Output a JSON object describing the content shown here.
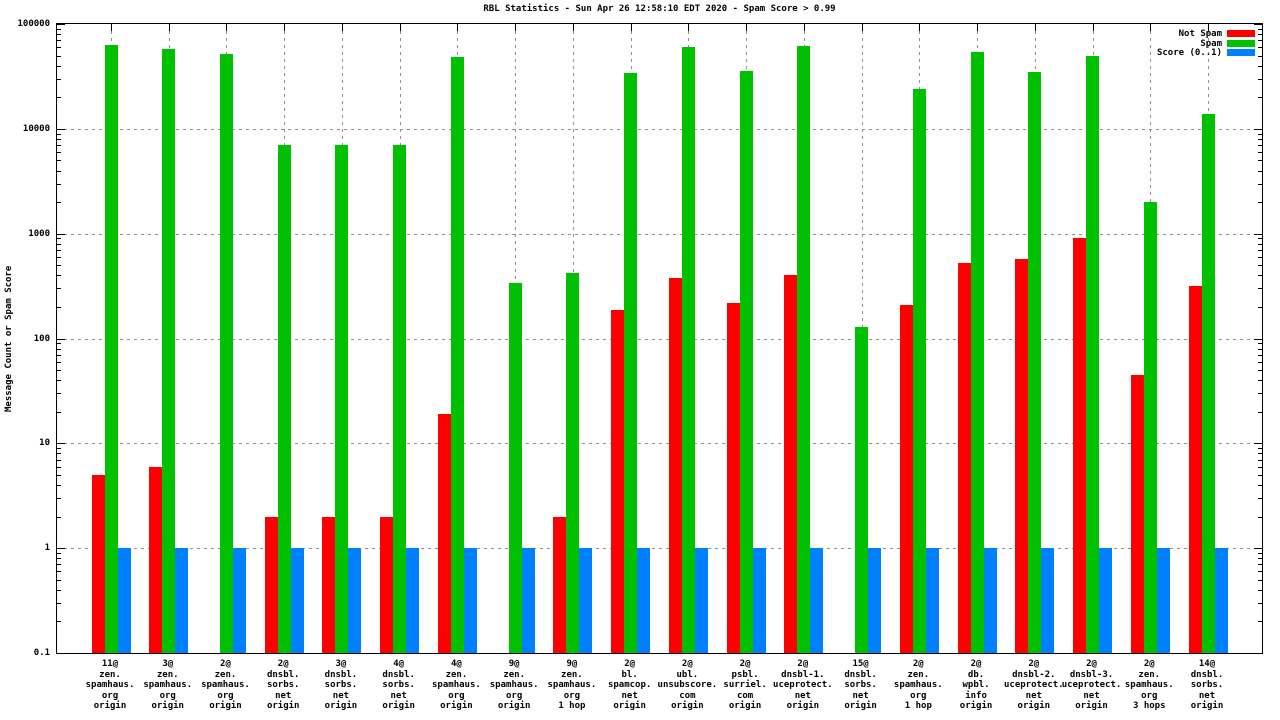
{
  "chart_data": {
    "type": "bar",
    "title": "RBL Statistics - Sun Apr 26 12:58:10 EDT 2020 - Spam Score > 0.99",
    "xlabel": "",
    "ylabel": "Message Count or Spam Score",
    "y_scale": "log10",
    "ylim": [
      0.1,
      100000
    ],
    "ytick_labels": [
      "100000",
      "10000",
      "1000",
      "100",
      "10",
      "1",
      "0.1"
    ],
    "grid": true,
    "legend_position": "top-right-inside",
    "categories": [
      [
        "11@",
        "zen.",
        "spamhaus.",
        "org",
        "origin"
      ],
      [
        "3@",
        "zen.",
        "spamhaus.",
        "org",
        "origin"
      ],
      [
        "2@",
        "zen.",
        "spamhaus.",
        "org",
        "origin"
      ],
      [
        "2@",
        "dnsbl.",
        "sorbs.",
        "net",
        "origin"
      ],
      [
        "3@",
        "dnsbl.",
        "sorbs.",
        "net",
        "origin"
      ],
      [
        "4@",
        "dnsbl.",
        "sorbs.",
        "net",
        "origin"
      ],
      [
        "4@",
        "zen.",
        "spamhaus.",
        "org",
        "origin"
      ],
      [
        "9@",
        "zen.",
        "spamhaus.",
        "org",
        "origin"
      ],
      [
        "9@",
        "zen.",
        "spamhaus.",
        "org",
        "1 hop"
      ],
      [
        "2@",
        "bl.",
        "spamcop.",
        "net",
        "origin"
      ],
      [
        "2@",
        "ubl.",
        "unsubscore.",
        "com",
        "origin"
      ],
      [
        "2@",
        "psbl.",
        "surriel.",
        "com",
        "origin"
      ],
      [
        "2@",
        "dnsbl-1.",
        "uceprotect.",
        "net",
        "origin"
      ],
      [
        "15@",
        "dnsbl.",
        "sorbs.",
        "net",
        "origin"
      ],
      [
        "2@",
        "zen.",
        "spamhaus.",
        "org",
        "1 hop"
      ],
      [
        "2@",
        "db.",
        "wpbl.",
        "info",
        "origin"
      ],
      [
        "2@",
        "dnsbl-2.",
        "uceprotect.",
        "net",
        "origin"
      ],
      [
        "2@",
        "dnsbl-3.",
        "uceprotect.",
        "net",
        "origin"
      ],
      [
        "2@",
        "zen.",
        "spamhaus.",
        "org",
        "3 hops"
      ],
      [
        "14@",
        "dnsbl.",
        "sorbs.",
        "net",
        "origin"
      ]
    ],
    "series": [
      {
        "name": "Not Spam",
        "color": "#ff0000",
        "values": [
          5,
          6,
          null,
          2,
          2,
          2,
          19,
          null,
          2,
          185,
          380,
          220,
          400,
          null,
          210,
          520,
          570,
          900,
          45,
          320
        ]
      },
      {
        "name": "Spam",
        "color": "#00c000",
        "values": [
          63000,
          58000,
          52000,
          7000,
          7000,
          7000,
          48000,
          340,
          420,
          34000,
          60000,
          36000,
          62000,
          130,
          24000,
          54000,
          35000,
          50000,
          2000,
          14000
        ]
      },
      {
        "name": "Score (0..1)",
        "color": "#0080ff",
        "values": [
          1,
          1,
          1,
          1,
          1,
          1,
          1,
          1,
          1,
          1,
          1,
          1,
          1,
          1,
          1,
          1,
          1,
          1,
          1,
          1
        ]
      }
    ]
  }
}
